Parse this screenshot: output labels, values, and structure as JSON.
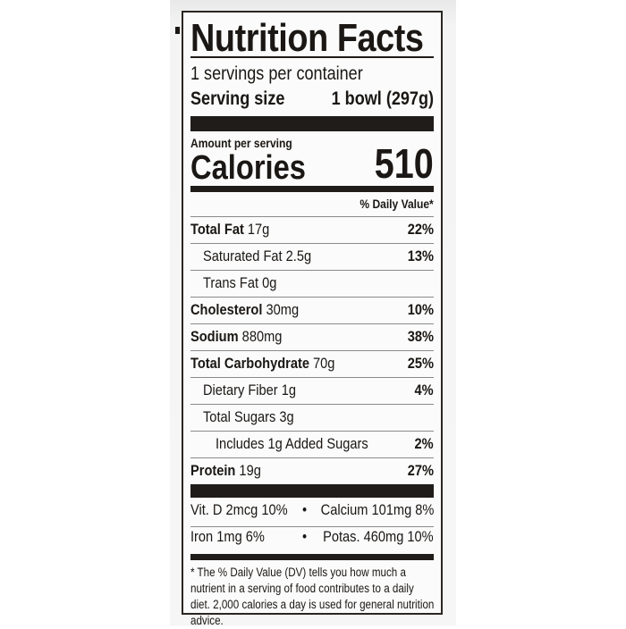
{
  "title": "Nutrition Facts",
  "servings_per_container": "1 servings per container",
  "serving_size_label": "Serving size",
  "serving_size_value": "1 bowl (297g)",
  "amount_per_serving": "Amount per serving",
  "calories_label": "Calories",
  "calories_value": "510",
  "dv_header": "% Daily Value*",
  "nutrients": [
    {
      "name": "Total Fat",
      "amount": "17g",
      "dv": "22%",
      "bold": true,
      "indent": 0
    },
    {
      "name": "Saturated Fat",
      "amount": "2.5g",
      "dv": "13%",
      "bold": false,
      "indent": 1
    },
    {
      "name": "Trans Fat",
      "amount": "0g",
      "dv": "",
      "bold": false,
      "indent": 1
    },
    {
      "name": "Cholesterol",
      "amount": "30mg",
      "dv": "10%",
      "bold": true,
      "indent": 0
    },
    {
      "name": "Sodium",
      "amount": "880mg",
      "dv": "38%",
      "bold": true,
      "indent": 0
    },
    {
      "name": "Total Carbohydrate",
      "amount": "70g",
      "dv": "25%",
      "bold": true,
      "indent": 0
    },
    {
      "name": "Dietary Fiber",
      "amount": "1g",
      "dv": "4%",
      "bold": false,
      "indent": 1
    },
    {
      "name": "Total Sugars",
      "amount": "3g",
      "dv": "",
      "bold": false,
      "indent": 1
    },
    {
      "name": "Includes 1g Added Sugars",
      "amount": "",
      "dv": "2%",
      "bold": false,
      "indent": 2
    },
    {
      "name": "Protein",
      "amount": "19g",
      "dv": "27%",
      "bold": true,
      "indent": 0
    }
  ],
  "micros": [
    {
      "left": "Vit. D 2mcg 10%",
      "bullet": "•",
      "right": "Calcium 101mg 8%"
    },
    {
      "left": "Iron 1mg 6%",
      "bullet": "•",
      "right": "Potas. 460mg 10%"
    }
  ],
  "footnote": "* The % Daily Value (DV) tells you how much a nutrient in a serving of food contributes to a daily diet. 2,000 calories a day is used for general nutrition advice."
}
